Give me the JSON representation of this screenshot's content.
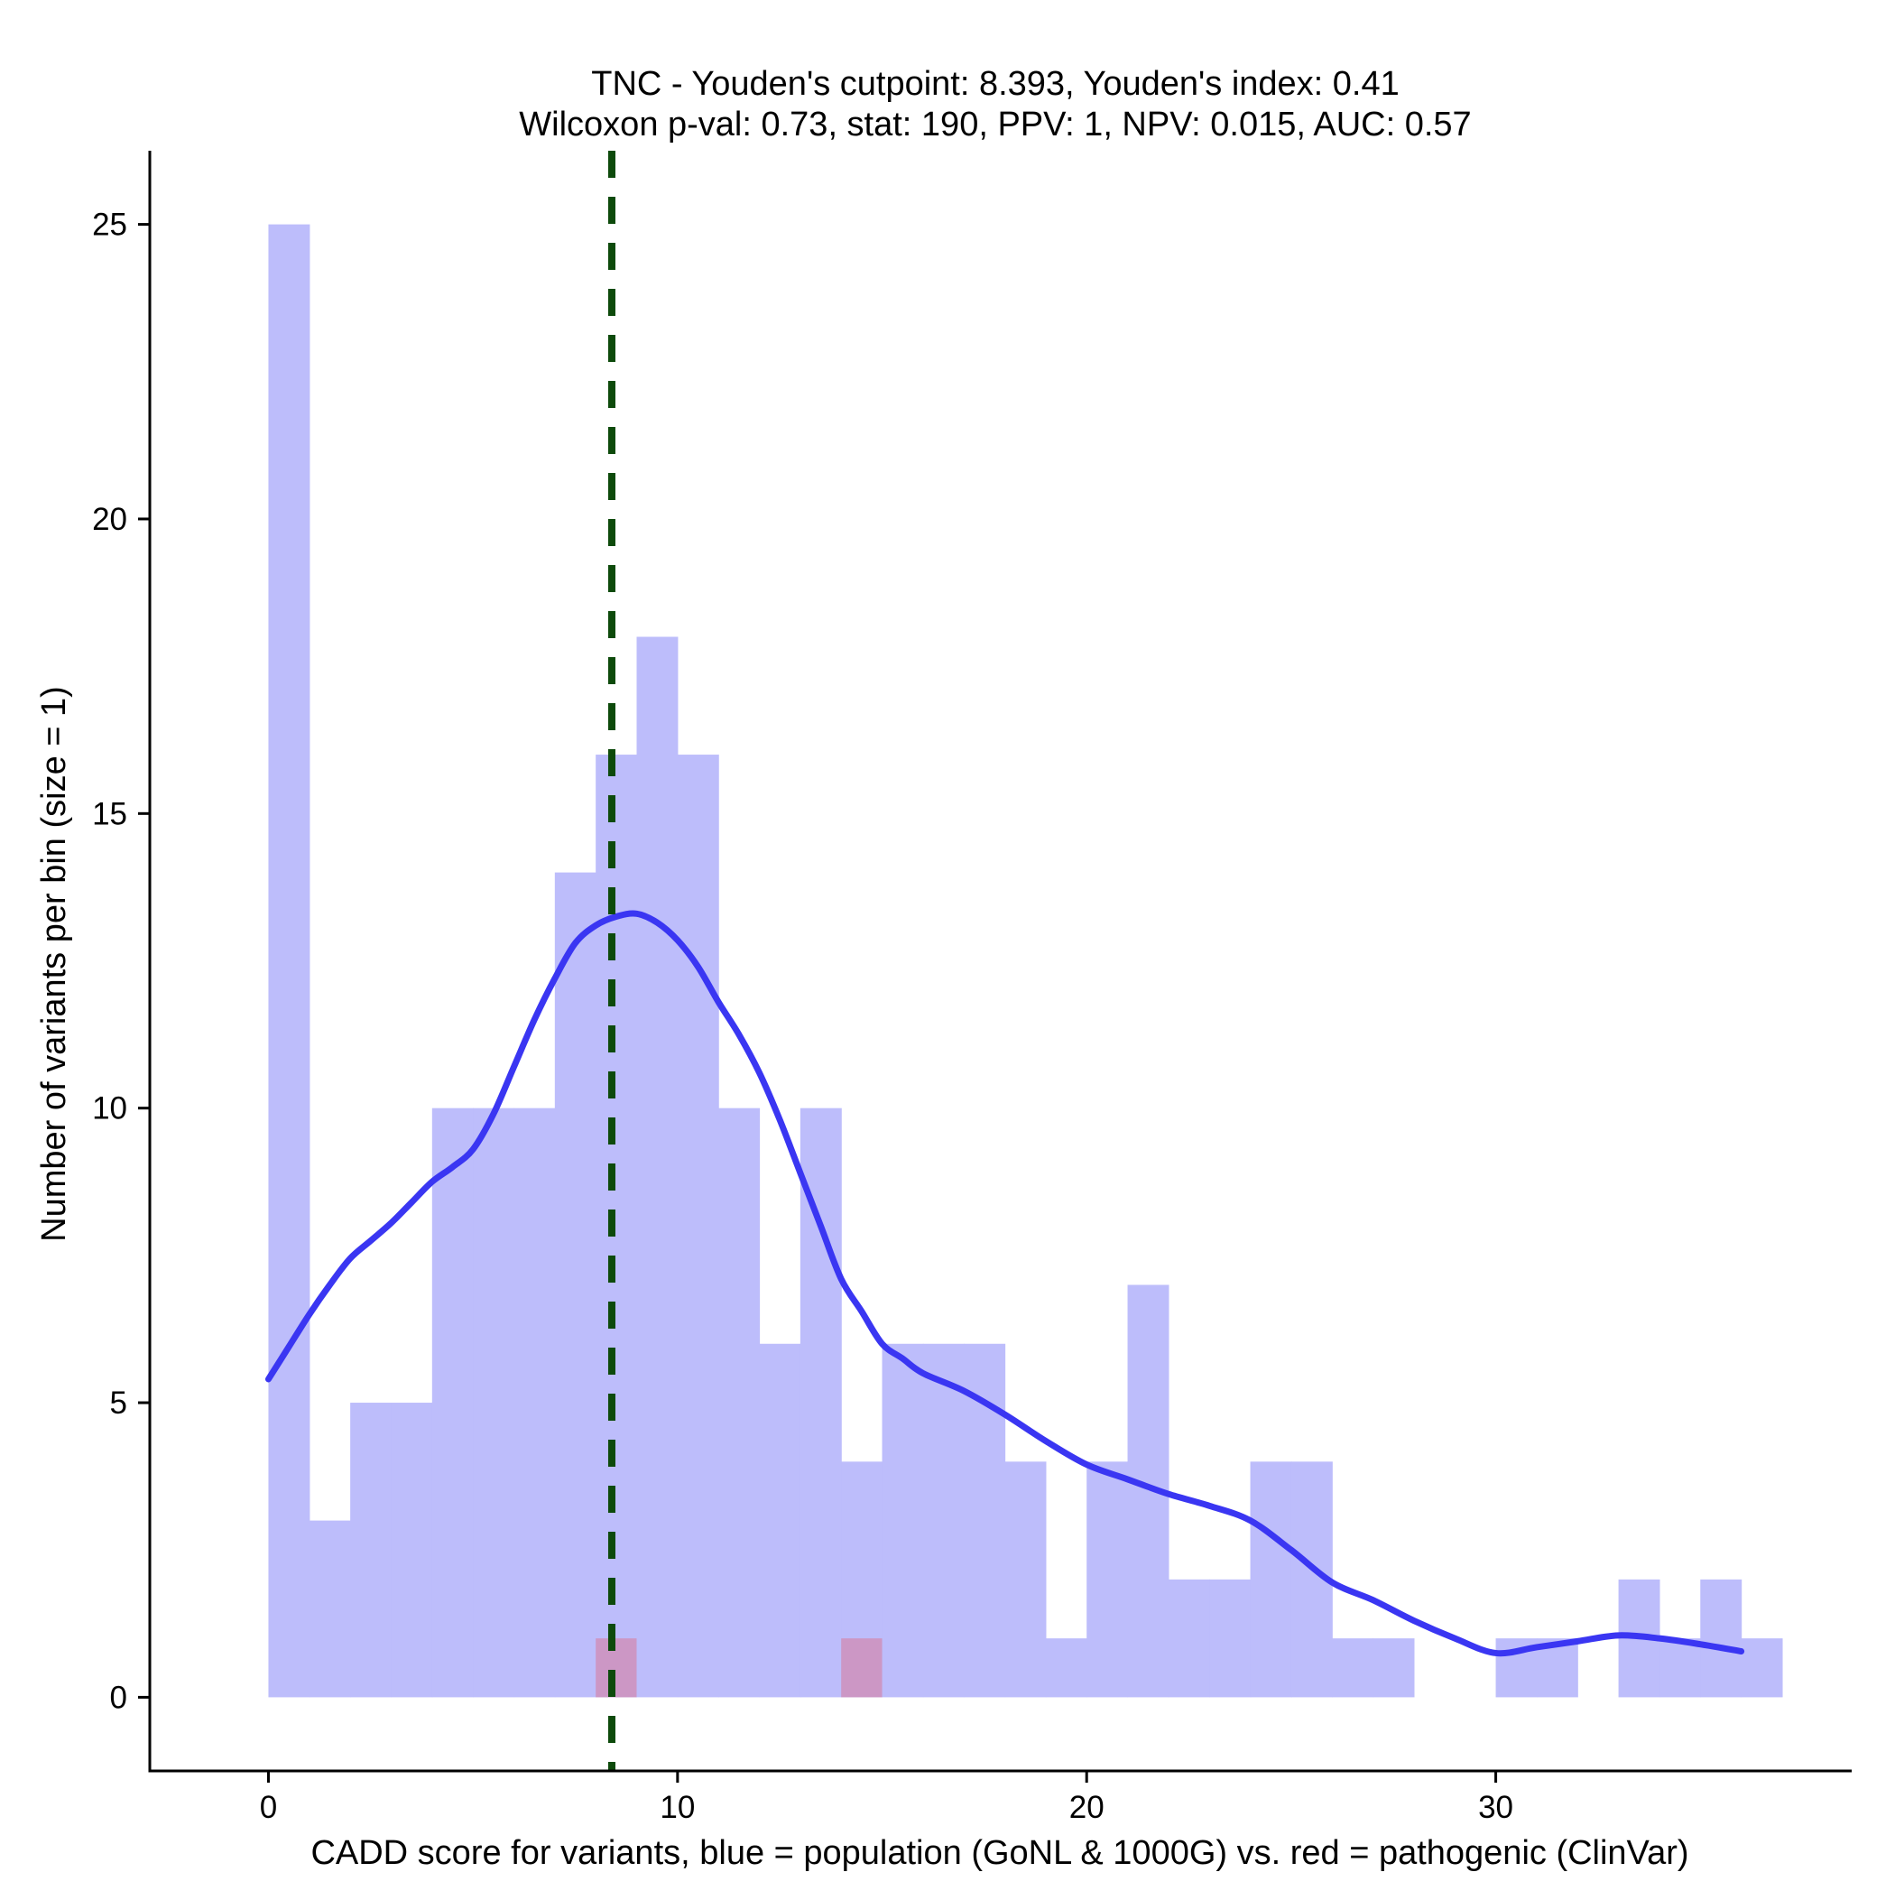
{
  "chart_data": {
    "type": "histogram",
    "title_line1": "TNC - Youden's cutpoint: 8.393, Youden's index: 0.41",
    "title_line2": "Wilcoxon p-val: 0.73, stat: 190, PPV: 1, NPV: 0.015, AUC: 0.57",
    "xlabel": "CADD score for variants, blue = population (GoNL & 1000G) vs. red = pathogenic (ClinVar)",
    "ylabel": "Number of variants per bin (size = 1)",
    "xlim": [
      -2.9,
      38.7
    ],
    "ylim": [
      -1.25,
      26.25
    ],
    "x_ticks": [
      0,
      10,
      20,
      30
    ],
    "y_ticks": [
      0,
      5,
      10,
      15,
      20,
      25
    ],
    "bin_size": 1,
    "series": [
      {
        "name": "population (GoNL & 1000G)",
        "color": "#bdbdfb",
        "bins": [
          {
            "x0": 0,
            "count": 25
          },
          {
            "x0": 1,
            "count": 3
          },
          {
            "x0": 2,
            "count": 5
          },
          {
            "x0": 3,
            "count": 5
          },
          {
            "x0": 4,
            "count": 10
          },
          {
            "x0": 5,
            "count": 10
          },
          {
            "x0": 6,
            "count": 10
          },
          {
            "x0": 7,
            "count": 14
          },
          {
            "x0": 8,
            "count": 16
          },
          {
            "x0": 9,
            "count": 18
          },
          {
            "x0": 10,
            "count": 16
          },
          {
            "x0": 11,
            "count": 10
          },
          {
            "x0": 12,
            "count": 6
          },
          {
            "x0": 13,
            "count": 10
          },
          {
            "x0": 14,
            "count": 4
          },
          {
            "x0": 15,
            "count": 6
          },
          {
            "x0": 16,
            "count": 6
          },
          {
            "x0": 17,
            "count": 6
          },
          {
            "x0": 18,
            "count": 4
          },
          {
            "x0": 19,
            "count": 1
          },
          {
            "x0": 20,
            "count": 4
          },
          {
            "x0": 21,
            "count": 7
          },
          {
            "x0": 22,
            "count": 2
          },
          {
            "x0": 23,
            "count": 2
          },
          {
            "x0": 24,
            "count": 4
          },
          {
            "x0": 25,
            "count": 4
          },
          {
            "x0": 26,
            "count": 1
          },
          {
            "x0": 27,
            "count": 1
          },
          {
            "x0": 28,
            "count": 0
          },
          {
            "x0": 29,
            "count": 0
          },
          {
            "x0": 30,
            "count": 1
          },
          {
            "x0": 31,
            "count": 1
          },
          {
            "x0": 32,
            "count": 0
          },
          {
            "x0": 33,
            "count": 2
          },
          {
            "x0": 34,
            "count": 1
          },
          {
            "x0": 35,
            "count": 2
          },
          {
            "x0": 36,
            "count": 1
          }
        ]
      },
      {
        "name": "pathogenic (ClinVar)",
        "color": "#cc95c2",
        "bins": [
          {
            "x0": 8,
            "count": 1
          },
          {
            "x0": 14,
            "count": 1
          }
        ]
      }
    ],
    "density_curve": {
      "name": "population density (scaled)",
      "color": "#3a36f2",
      "points": [
        [
          0,
          5.4
        ],
        [
          0.5,
          5.95
        ],
        [
          1,
          6.5
        ],
        [
          1.5,
          7.0
        ],
        [
          2,
          7.45
        ],
        [
          2.5,
          7.75
        ],
        [
          3,
          8.05
        ],
        [
          3.5,
          8.4
        ],
        [
          4,
          8.75
        ],
        [
          4.5,
          9.0
        ],
        [
          5,
          9.3
        ],
        [
          5.5,
          9.9
        ],
        [
          6,
          10.7
        ],
        [
          6.5,
          11.5
        ],
        [
          7,
          12.2
        ],
        [
          7.5,
          12.8
        ],
        [
          8,
          13.1
        ],
        [
          8.5,
          13.25
        ],
        [
          9,
          13.3
        ],
        [
          9.5,
          13.15
        ],
        [
          10,
          12.85
        ],
        [
          10.5,
          12.4
        ],
        [
          11,
          11.8
        ],
        [
          11.5,
          11.25
        ],
        [
          12,
          10.6
        ],
        [
          12.5,
          9.8
        ],
        [
          13,
          8.9
        ],
        [
          13.5,
          8.0
        ],
        [
          14,
          7.1
        ],
        [
          14.5,
          6.55
        ],
        [
          15,
          6.0
        ],
        [
          15.5,
          5.75
        ],
        [
          16,
          5.5
        ],
        [
          17,
          5.2
        ],
        [
          18,
          4.8
        ],
        [
          19,
          4.35
        ],
        [
          20,
          3.95
        ],
        [
          21,
          3.7
        ],
        [
          22,
          3.45
        ],
        [
          23,
          3.25
        ],
        [
          24,
          3.0
        ],
        [
          25,
          2.5
        ],
        [
          26,
          1.95
        ],
        [
          27,
          1.65
        ],
        [
          28,
          1.3
        ],
        [
          29,
          1.0
        ],
        [
          30,
          0.75
        ],
        [
          31,
          0.85
        ],
        [
          32,
          0.95
        ],
        [
          33,
          1.05
        ],
        [
          34,
          1.0
        ],
        [
          35,
          0.9
        ],
        [
          36,
          0.78
        ]
      ]
    },
    "cutpoint": {
      "label": "Youden's cutpoint",
      "x": 8.393,
      "color": "#0d4a0b",
      "style": "dashed"
    },
    "grid": false
  }
}
